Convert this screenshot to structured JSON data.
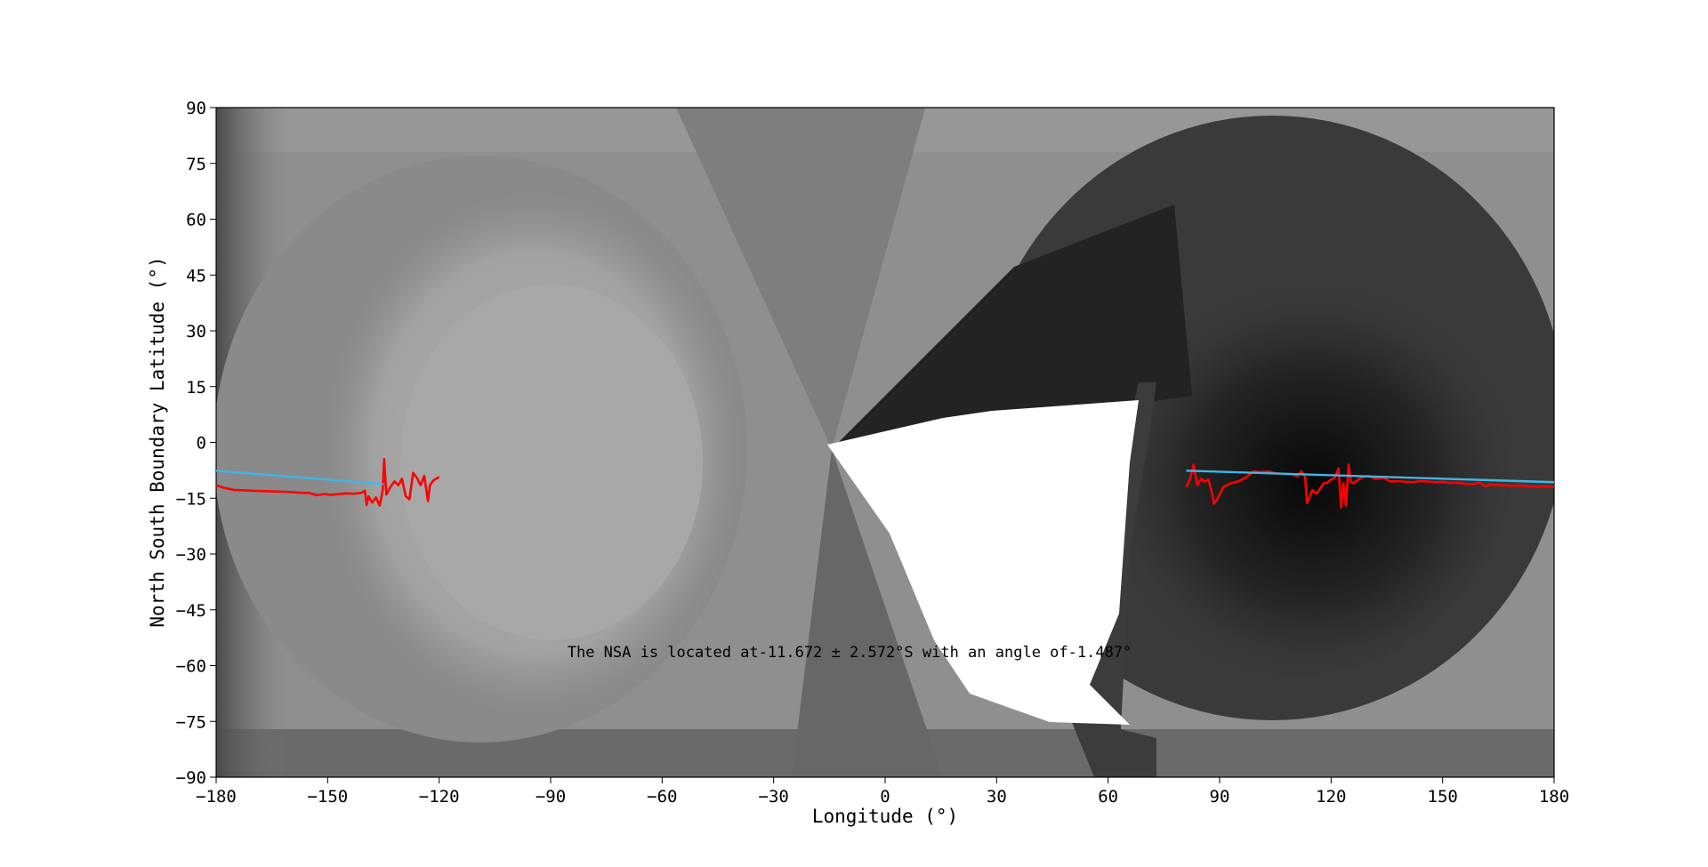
{
  "chart_data": {
    "type": "line",
    "title": "",
    "xlabel": "Longitude (°)",
    "ylabel": "North South Boundary Latitude (°)",
    "xlim": [
      -180,
      180
    ],
    "ylim": [
      -90,
      90
    ],
    "xticks": [
      -180,
      -150,
      -120,
      -90,
      -60,
      -30,
      0,
      30,
      60,
      90,
      120,
      150,
      180
    ],
    "yticks": [
      -90,
      -75,
      -60,
      -45,
      -30,
      -15,
      0,
      15,
      30,
      45,
      60,
      75,
      90
    ],
    "xtick_labels": [
      "−180",
      "−150",
      "−120",
      "−90",
      "−60",
      "−30",
      "0",
      "30",
      "60",
      "90",
      "120",
      "150",
      "180"
    ],
    "ytick_labels": [
      "−90",
      "−75",
      "−60",
      "−45",
      "−30",
      "−15",
      "0",
      "15",
      "30",
      "45",
      "60",
      "75",
      "90"
    ],
    "annotation": "The NSA is located at-11.672 ± 2.572°S  with an angle of-1.487°",
    "background": "grayscale longitude–latitude map",
    "series": [
      {
        "color": "#ff0000",
        "segments": [
          [
            [
              -180,
              -11.5
            ],
            [
              -178,
              -12.2
            ],
            [
              -175,
              -12.8
            ],
            [
              -172,
              -12.9
            ],
            [
              -170,
              -13.0
            ],
            [
              -167,
              -13.1
            ],
            [
              -164,
              -13.2
            ],
            [
              -161,
              -13.3
            ],
            [
              -158,
              -13.5
            ],
            [
              -155,
              -13.6
            ],
            [
              -153,
              -14.2
            ],
            [
              -151,
              -13.9
            ],
            [
              -149,
              -14.1
            ],
            [
              -147,
              -13.9
            ],
            [
              -145,
              -13.7
            ],
            [
              -143,
              -13.8
            ],
            [
              -141,
              -13.6
            ],
            [
              -140,
              -13.0
            ],
            [
              -139.5,
              -16.8
            ],
            [
              -139,
              -14.5
            ],
            [
              -138,
              -16.2
            ],
            [
              -137,
              -14.8
            ],
            [
              -136,
              -17.0
            ],
            [
              -135.2,
              -13.0
            ],
            [
              -134.8,
              -4.5
            ],
            [
              -134.2,
              -14.0
            ],
            [
              -133,
              -11.8
            ],
            [
              -132,
              -10.5
            ],
            [
              -131,
              -11.5
            ],
            [
              -130,
              -9.8
            ],
            [
              -129,
              -14.5
            ],
            [
              -128,
              -15.3
            ],
            [
              -127,
              -8.2
            ],
            [
              -126,
              -9.5
            ],
            [
              -125,
              -11.5
            ],
            [
              -124,
              -9.0
            ],
            [
              -123,
              -15.8
            ],
            [
              -122.5,
              -11.5
            ],
            [
              -121.5,
              -10.2
            ],
            [
              -120,
              -9.3
            ]
          ],
          [
            [
              81,
              -12.0
            ],
            [
              82,
              -10.0
            ],
            [
              83,
              -6.0
            ],
            [
              84,
              -11.5
            ],
            [
              85,
              -9.8
            ],
            [
              86,
              -10.5
            ],
            [
              87,
              -10.0
            ],
            [
              88,
              -13.8
            ],
            [
              88.5,
              -16.5
            ],
            [
              89.5,
              -15.0
            ],
            [
              91,
              -12.0
            ],
            [
              93,
              -11.0
            ],
            [
              95,
              -10.5
            ],
            [
              97,
              -9.5
            ],
            [
              99,
              -7.8
            ],
            [
              101,
              -8.0
            ],
            [
              103,
              -7.8
            ],
            [
              105,
              -8.3
            ],
            [
              107,
              -8.5
            ],
            [
              109,
              -8.6
            ],
            [
              111,
              -9.0
            ],
            [
              112,
              -7.8
            ],
            [
              113,
              -9.2
            ],
            [
              113.5,
              -16.3
            ],
            [
              114.5,
              -14.0
            ],
            [
              115,
              -12.8
            ],
            [
              116,
              -13.8
            ],
            [
              117,
              -12.5
            ],
            [
              118,
              -11.0
            ],
            [
              119,
              -10.8
            ],
            [
              120,
              -10.0
            ],
            [
              121,
              -9.5
            ],
            [
              122,
              -7.0
            ],
            [
              122.7,
              -17.5
            ],
            [
              123.3,
              -11.0
            ],
            [
              124,
              -17.0
            ],
            [
              124.7,
              -6.0
            ],
            [
              125.3,
              -10.5
            ],
            [
              126,
              -11.0
            ],
            [
              128,
              -9.5
            ],
            [
              130,
              -9.0
            ],
            [
              132,
              -9.8
            ],
            [
              134,
              -9.5
            ],
            [
              136,
              -10.5
            ],
            [
              138,
              -10.4
            ],
            [
              140,
              -10.6
            ],
            [
              142,
              -10.7
            ],
            [
              144,
              -10.4
            ],
            [
              146,
              -10.5
            ],
            [
              148,
              -10.7
            ],
            [
              150,
              -10.6
            ],
            [
              152,
              -10.9
            ],
            [
              154,
              -10.8
            ],
            [
              156,
              -11.1
            ],
            [
              158,
              -11.3
            ],
            [
              160,
              -10.8
            ],
            [
              161.5,
              -11.8
            ],
            [
              163,
              -11.3
            ],
            [
              165,
              -11.5
            ],
            [
              167,
              -11.6
            ],
            [
              169,
              -11.7
            ],
            [
              171,
              -11.6
            ],
            [
              173,
              -11.8
            ],
            [
              175,
              -11.9
            ],
            [
              177,
              -11.8
            ],
            [
              180,
              -12.0
            ]
          ]
        ]
      },
      {
        "color": "#3fb7e8",
        "segments": [
          [
            [
              -180,
              -7.6
            ],
            [
              -135,
              -11.2
            ]
          ],
          [
            [
              81,
              -7.6
            ],
            [
              180,
              -10.7
            ]
          ]
        ]
      }
    ]
  }
}
